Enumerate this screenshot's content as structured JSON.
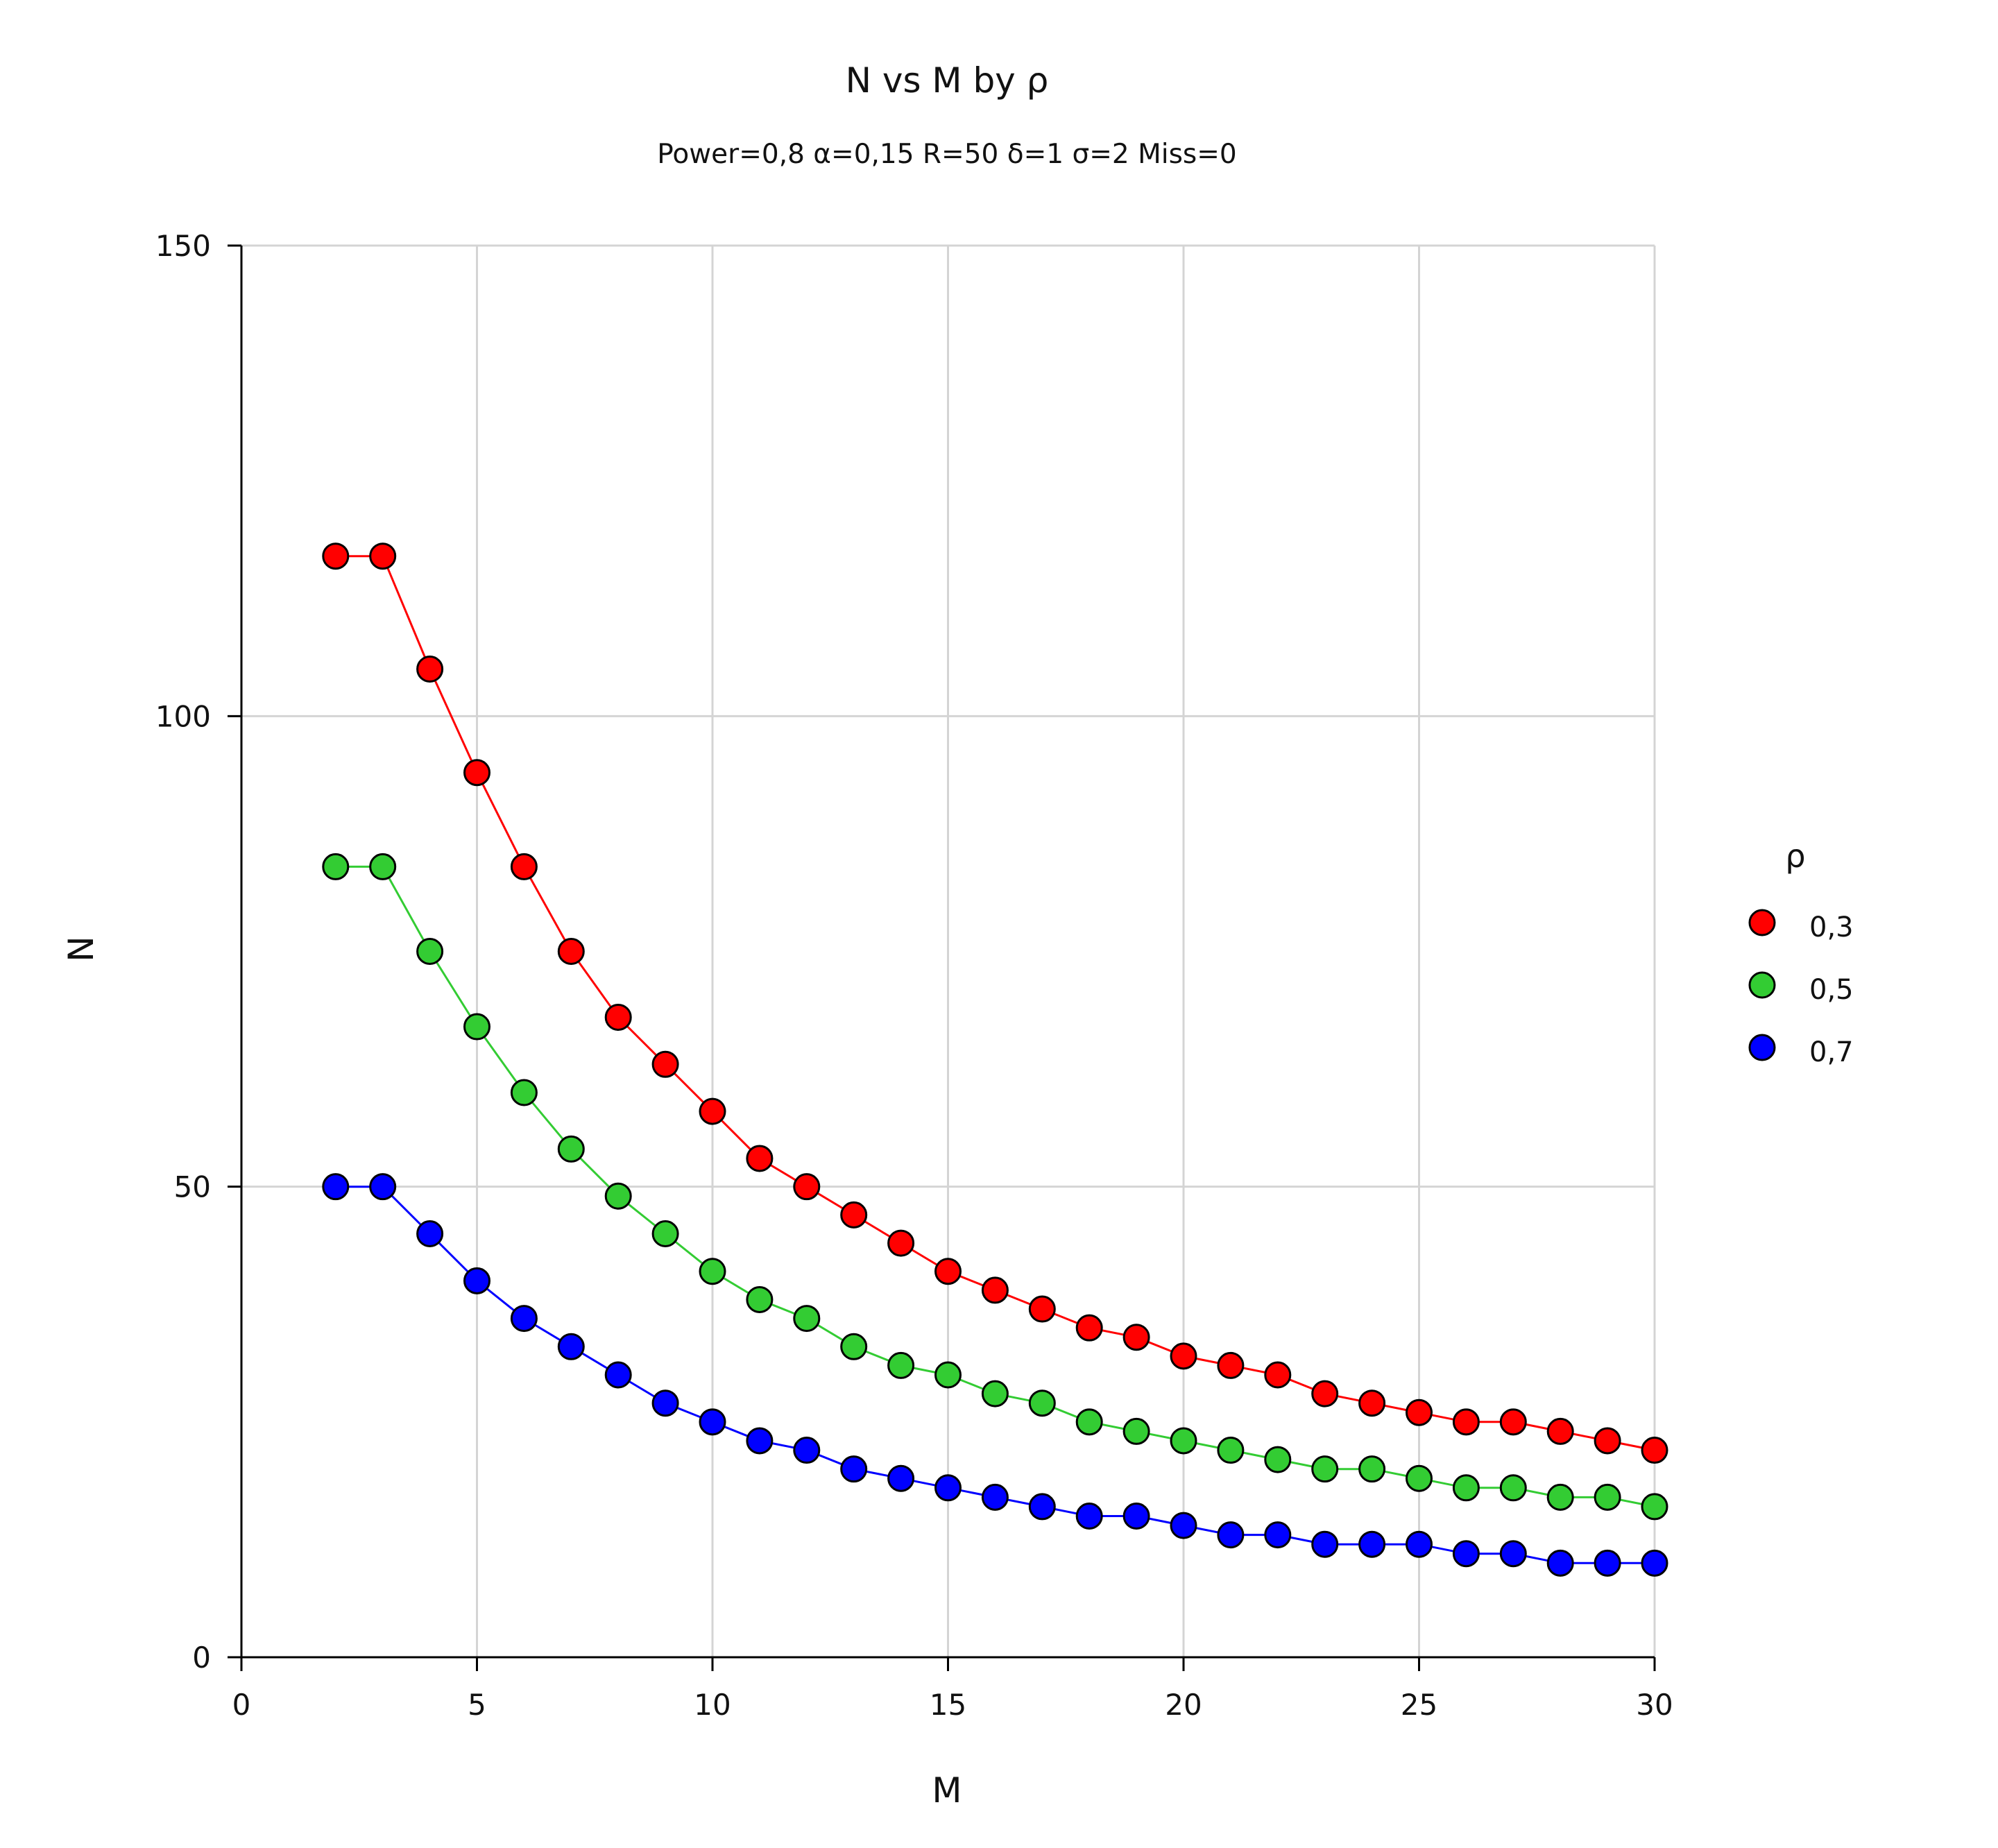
{
  "chart_data": {
    "type": "line",
    "title": "N vs M by ρ",
    "subtitle": "Power=0,8 α=0,15 R=50 δ=1 σ=2 Miss=0",
    "xlabel": "M",
    "ylabel": "N",
    "xlim": [
      0,
      30
    ],
    "ylim": [
      0,
      150
    ],
    "xticks": [
      "0",
      "5",
      "10",
      "15",
      "20",
      "25",
      "30"
    ],
    "yticks": [
      "0",
      "50",
      "100",
      "150"
    ],
    "grid": true,
    "legend": {
      "title": "ρ",
      "position": "right",
      "entries": [
        "0,3",
        "0,5",
        "0,7"
      ]
    },
    "x": [
      2,
      3,
      4,
      5,
      6,
      7,
      8,
      9,
      10,
      11,
      12,
      13,
      14,
      15,
      16,
      17,
      18,
      19,
      20,
      21,
      22,
      23,
      24,
      25,
      26,
      27,
      28,
      29,
      30
    ],
    "series": [
      {
        "name": "0,3",
        "color": "#ff0000",
        "values": [
          117,
          117,
          105,
          94,
          84,
          75,
          68,
          63,
          58,
          53,
          50,
          47,
          44,
          41,
          39,
          37,
          35,
          34,
          32,
          31,
          30,
          28,
          27,
          26,
          25,
          25,
          24,
          23,
          22
        ]
      },
      {
        "name": "0,5",
        "color": "#33cc33",
        "values": [
          84,
          84,
          75,
          67,
          60,
          54,
          49,
          45,
          41,
          38,
          36,
          33,
          31,
          30,
          28,
          27,
          25,
          24,
          23,
          22,
          21,
          20,
          20,
          19,
          18,
          18,
          17,
          17,
          16
        ]
      },
      {
        "name": "0,7",
        "color": "#0000ff",
        "values": [
          50,
          50,
          45,
          40,
          36,
          33,
          30,
          27,
          25,
          23,
          22,
          20,
          19,
          18,
          17,
          16,
          15,
          15,
          14,
          13,
          13,
          12,
          12,
          12,
          11,
          11,
          10,
          10,
          10
        ]
      }
    ]
  }
}
